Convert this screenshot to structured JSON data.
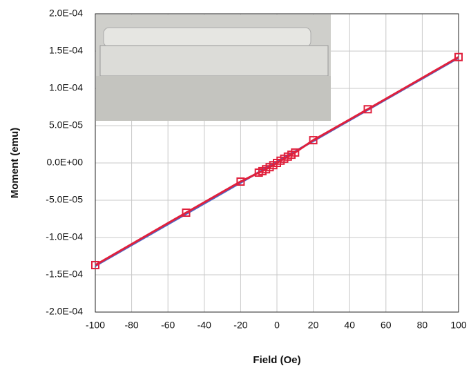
{
  "chart_data": {
    "type": "scatter",
    "x_label": "Field (Oe)",
    "y_label": "Moment (emu)",
    "xlim": [
      -100,
      100
    ],
    "xticks": [
      -100,
      -80,
      -60,
      -40,
      -20,
      0,
      20,
      40,
      60,
      80,
      100
    ],
    "ylim": [
      -0.0002,
      0.0002
    ],
    "yticks": [
      {
        "value": -0.0002,
        "label": "-2.0E-04"
      },
      {
        "value": -0.00015,
        "label": "-1.5E-04"
      },
      {
        "value": -0.0001,
        "label": "-1.0E-04"
      },
      {
        "value": -5e-05,
        "label": "-5.0E-05"
      },
      {
        "value": 0,
        "label": "0.0E+00"
      },
      {
        "value": 5e-05,
        "label": "5.0E-05"
      },
      {
        "value": 0.0001,
        "label": "1.0E-04"
      },
      {
        "value": 0.00015,
        "label": "1.5E-04"
      },
      {
        "value": 0.0002,
        "label": "2.0E-04"
      }
    ],
    "grid": true,
    "series": [
      {
        "color": "#4a68c8",
        "marker": "none",
        "x": [
          -100,
          100
        ],
        "values": [
          -0.000138,
          0.000141
        ]
      },
      {
        "color": "#e0203c",
        "marker": "square",
        "x": [
          -100,
          -50,
          -20,
          -10,
          -8,
          -6,
          -4,
          -2,
          0,
          2,
          4,
          6,
          8,
          10,
          20,
          50,
          100
        ],
        "values": [
          -0.000137,
          -6.67e-05,
          -2.5e-05,
          -1.3e-05,
          -1.1e-05,
          -8.5e-06,
          -5.7e-06,
          -3e-06,
          0,
          3e-06,
          5.7e-06,
          8.5e-06,
          1.1e-05,
          1.4e-05,
          3.05e-05,
          7.2e-05,
          0.000142
        ]
      }
    ]
  }
}
